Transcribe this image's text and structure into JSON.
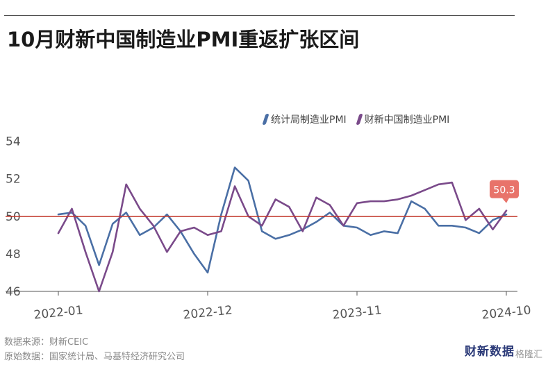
{
  "title": "10月财新中国制造业PMI重返扩张区间",
  "source": {
    "line1": "数据来源：财新CEIC",
    "line2": "原始数据：国家统计局、马基特经济研究公司"
  },
  "brand": "财新数据",
  "badge": "格隆汇",
  "chart_data": {
    "type": "line",
    "x": [
      "2022-01",
      "2022-02",
      "2022-03",
      "2022-04",
      "2022-05",
      "2022-06",
      "2022-07",
      "2022-08",
      "2022-09",
      "2022-10",
      "2022-11",
      "2022-12",
      "2023-01",
      "2023-02",
      "2023-03",
      "2023-04",
      "2023-05",
      "2023-06",
      "2023-07",
      "2023-08",
      "2023-09",
      "2023-10",
      "2023-11",
      "2023-12",
      "2024-01",
      "2024-02",
      "2024-03",
      "2024-04",
      "2024-05",
      "2024-06",
      "2024-07",
      "2024-08",
      "2024-09",
      "2024-10"
    ],
    "x_tick_labels": [
      "2022-01",
      "2022-12",
      "2023-11",
      "2024-10"
    ],
    "series": [
      {
        "name": "统计局制造业PMI",
        "color": "#4a6fa5",
        "values": [
          50.1,
          50.2,
          49.5,
          47.4,
          49.6,
          50.2,
          49.0,
          49.4,
          50.1,
          49.2,
          48.0,
          47.0,
          50.1,
          52.6,
          51.9,
          49.2,
          48.8,
          49.0,
          49.3,
          49.7,
          50.2,
          49.5,
          49.4,
          49.0,
          49.2,
          49.1,
          50.8,
          50.4,
          49.5,
          49.5,
          49.4,
          49.1,
          49.8,
          50.1
        ]
      },
      {
        "name": "财新中国制造业PMI",
        "color": "#7a4a8a",
        "values": [
          49.1,
          50.4,
          48.1,
          46.0,
          48.1,
          51.7,
          50.4,
          49.5,
          48.1,
          49.2,
          49.4,
          49.0,
          49.2,
          51.6,
          50.0,
          49.5,
          50.9,
          50.5,
          49.2,
          51.0,
          50.6,
          49.5,
          50.7,
          50.8,
          50.8,
          50.9,
          51.1,
          51.4,
          51.7,
          51.8,
          49.8,
          50.4,
          49.3,
          50.3
        ]
      }
    ],
    "y_ticks": [
      46,
      48,
      50,
      52,
      54
    ],
    "ylim": [
      46,
      54.5
    ],
    "reference_line": {
      "value": 50,
      "color": "#c23a2e"
    },
    "end_label": "50.3",
    "legend_position": "top-right",
    "grid": false
  }
}
